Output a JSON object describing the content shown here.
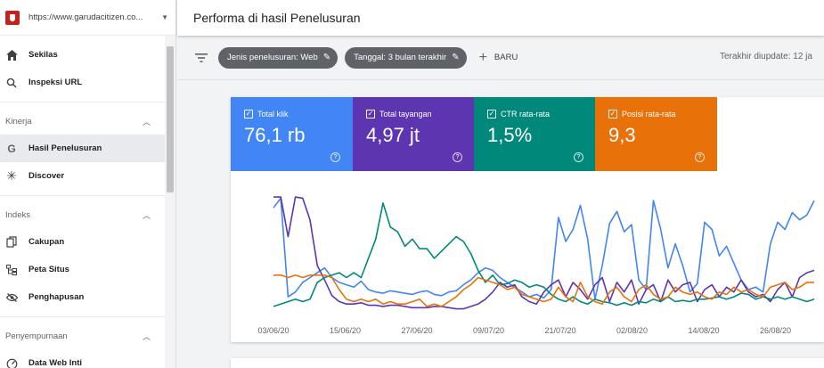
{
  "property": {
    "url": "https://www.garudacitizen.co...",
    "icon": "site-favicon"
  },
  "header": {
    "title": "Performa di hasil Penelusuran"
  },
  "sidebar": {
    "top_items": [
      {
        "label": "Sekilas",
        "icon": "home-icon"
      },
      {
        "label": "Inspeksi URL",
        "icon": "search-icon"
      }
    ],
    "sections": [
      {
        "title": "Kinerja",
        "items": [
          {
            "label": "Hasil Penelusuran",
            "icon": "google-g-icon",
            "active": true
          },
          {
            "label": "Discover",
            "icon": "asterisk-icon"
          }
        ]
      },
      {
        "title": "Indeks",
        "items": [
          {
            "label": "Cakupan",
            "icon": "pages-icon"
          },
          {
            "label": "Peta Situs",
            "icon": "sitemap-icon"
          },
          {
            "label": "Penghapusan",
            "icon": "eye-off-icon"
          }
        ]
      },
      {
        "title": "Penyempurnaan",
        "items": [
          {
            "label": "Data Web Inti",
            "icon": "speedometer-icon"
          }
        ]
      }
    ]
  },
  "filters": {
    "chip_search_type": "Jenis penelusuran: Web",
    "chip_date": "Tanggal: 3 bulan terakhir",
    "new_label": "BARU",
    "last_update": "Terakhir diupdate: 12 ja"
  },
  "metrics": [
    {
      "label": "Total klik",
      "value": "76,1 rb",
      "color": "#4285f4"
    },
    {
      "label": "Total tayangan",
      "value": "4,97 jt",
      "color": "#5e35b1"
    },
    {
      "label": "CTR rata-rata",
      "value": "1,5%",
      "color": "#00897b"
    },
    {
      "label": "Posisi rata-rata",
      "value": "9,3",
      "color": "#e8710a"
    }
  ],
  "chart_data": {
    "type": "line",
    "x_tick_labels": [
      "03/06/20",
      "15/06/20",
      "27/06/20",
      "09/07/20",
      "21/07/20",
      "02/08/20",
      "14/08/20",
      "26/08/20"
    ],
    "y_range": [
      0,
      100
    ],
    "grid": false,
    "series": [
      {
        "name": "Total klik",
        "color": "#4285f4",
        "values": [
          88,
          96,
          14,
          18,
          26,
          30,
          34,
          38,
          30,
          26,
          24,
          22,
          27,
          20,
          18,
          17,
          19,
          18,
          17,
          16,
          18,
          19,
          16,
          15,
          18,
          19,
          24,
          28,
          34,
          38,
          36,
          30,
          26,
          22,
          18,
          14,
          16,
          13,
          20,
          80,
          60,
          70,
          90,
          62,
          12,
          40,
          75,
          85,
          68,
          74,
          28,
          20,
          94,
          70,
          38,
          58,
          40,
          18,
          25,
          76,
          70,
          48,
          56,
          42,
          28,
          20,
          22,
          18,
          58,
          76,
          70,
          84,
          78,
          82,
          94
        ]
      },
      {
        "name": "Total tayangan",
        "color": "#5e35b1",
        "values": [
          97,
          97,
          64,
          97,
          96,
          78,
          40,
          28,
          15,
          10,
          8,
          8,
          9,
          7,
          7,
          6,
          7,
          7,
          6,
          5,
          5,
          5,
          6,
          6,
          5,
          4,
          4,
          6,
          8,
          12,
          18,
          26,
          22,
          24,
          14,
          10,
          8,
          18,
          24,
          28,
          14,
          26,
          20,
          12,
          24,
          30,
          10,
          26,
          18,
          28,
          8,
          20,
          24,
          10,
          28,
          18,
          24,
          26,
          10,
          20,
          24,
          14,
          22,
          18,
          28,
          18,
          14,
          16,
          10,
          20,
          26,
          14,
          30,
          34,
          36
        ]
      },
      {
        "name": "CTR rata-rata",
        "color": "#00897b",
        "values": [
          6,
          8,
          10,
          12,
          10,
          12,
          26,
          30,
          32,
          34,
          30,
          34,
          30,
          46,
          62,
          92,
          72,
          68,
          56,
          62,
          54,
          54,
          46,
          52,
          58,
          64,
          60,
          50,
          36,
          26,
          32,
          24,
          25,
          28,
          26,
          22,
          24,
          22,
          16,
          12,
          10,
          14,
          10,
          8,
          12,
          10,
          9,
          7,
          9,
          7,
          10,
          9,
          12,
          10,
          14,
          10,
          11,
          10,
          12,
          12,
          13,
          14,
          12,
          14,
          17,
          16,
          12,
          14,
          12,
          14,
          12,
          14,
          12,
          10,
          12
        ]
      },
      {
        "name": "Posisi rata-rata",
        "color": "#e8710a",
        "values": [
          32,
          32,
          30,
          32,
          30,
          32,
          32,
          32,
          30,
          20,
          12,
          10,
          12,
          10,
          12,
          8,
          10,
          8,
          8,
          10,
          12,
          6,
          8,
          6,
          10,
          14,
          20,
          24,
          30,
          28,
          26,
          24,
          20,
          22,
          16,
          14,
          12,
          10,
          12,
          22,
          14,
          10,
          26,
          14,
          10,
          8,
          18,
          22,
          14,
          10,
          20,
          24,
          16,
          12,
          14,
          22,
          18,
          16,
          18,
          14,
          12,
          18,
          16,
          22,
          18,
          20,
          16,
          14,
          22,
          24,
          26,
          20,
          22,
          26,
          26
        ]
      }
    ]
  }
}
